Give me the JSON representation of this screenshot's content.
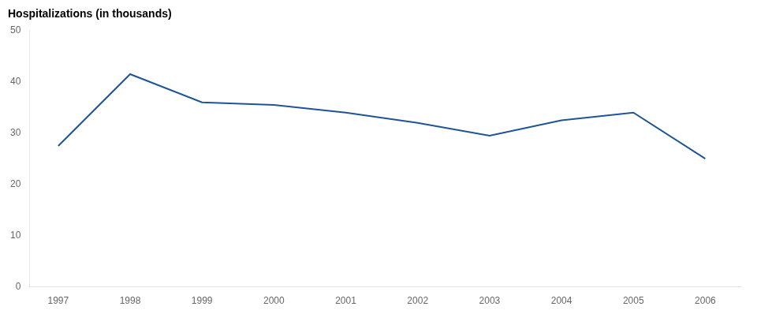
{
  "chart_data": {
    "type": "line",
    "ylabel": "Hospitalizations (in thousands)",
    "x": [
      1997,
      1998,
      1999,
      2000,
      2001,
      2002,
      2003,
      2004,
      2005,
      2006
    ],
    "values": [
      27.5,
      41.5,
      36.0,
      35.5,
      34.0,
      32.0,
      29.5,
      32.5,
      34.0,
      25.0
    ],
    "color": "#1f5496",
    "xlim": [
      1996.6,
      2006.5
    ],
    "xticks": [
      1997,
      1998,
      1999,
      2000,
      2001,
      2002,
      2003,
      2004,
      2005,
      2006
    ],
    "ylim": [
      0,
      50
    ],
    "yticks": [
      0,
      10,
      20,
      30,
      40,
      50
    ],
    "grid": false
  }
}
